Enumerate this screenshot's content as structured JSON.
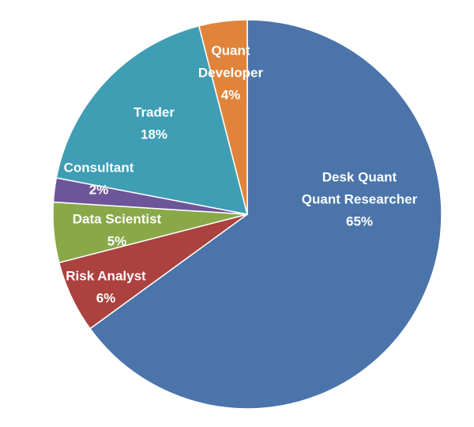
{
  "chart_data": {
    "type": "pie",
    "categories": [
      [
        "Desk Quant",
        "Quant Researcher"
      ],
      [
        "Risk Analyst"
      ],
      [
        "Data Scientist"
      ],
      [
        "Consultant"
      ],
      [
        "Trader"
      ],
      [
        "Quant",
        "Developer"
      ]
    ],
    "values": [
      65,
      6,
      5,
      2,
      18,
      4
    ],
    "value_labels": [
      "65%",
      "6%",
      "5%",
      "2%",
      "18%",
      "4%"
    ],
    "colors": [
      "#4a74aa",
      "#ab423f",
      "#89a948",
      "#6d559a",
      "#3f9db4",
      "#e0843b"
    ]
  }
}
